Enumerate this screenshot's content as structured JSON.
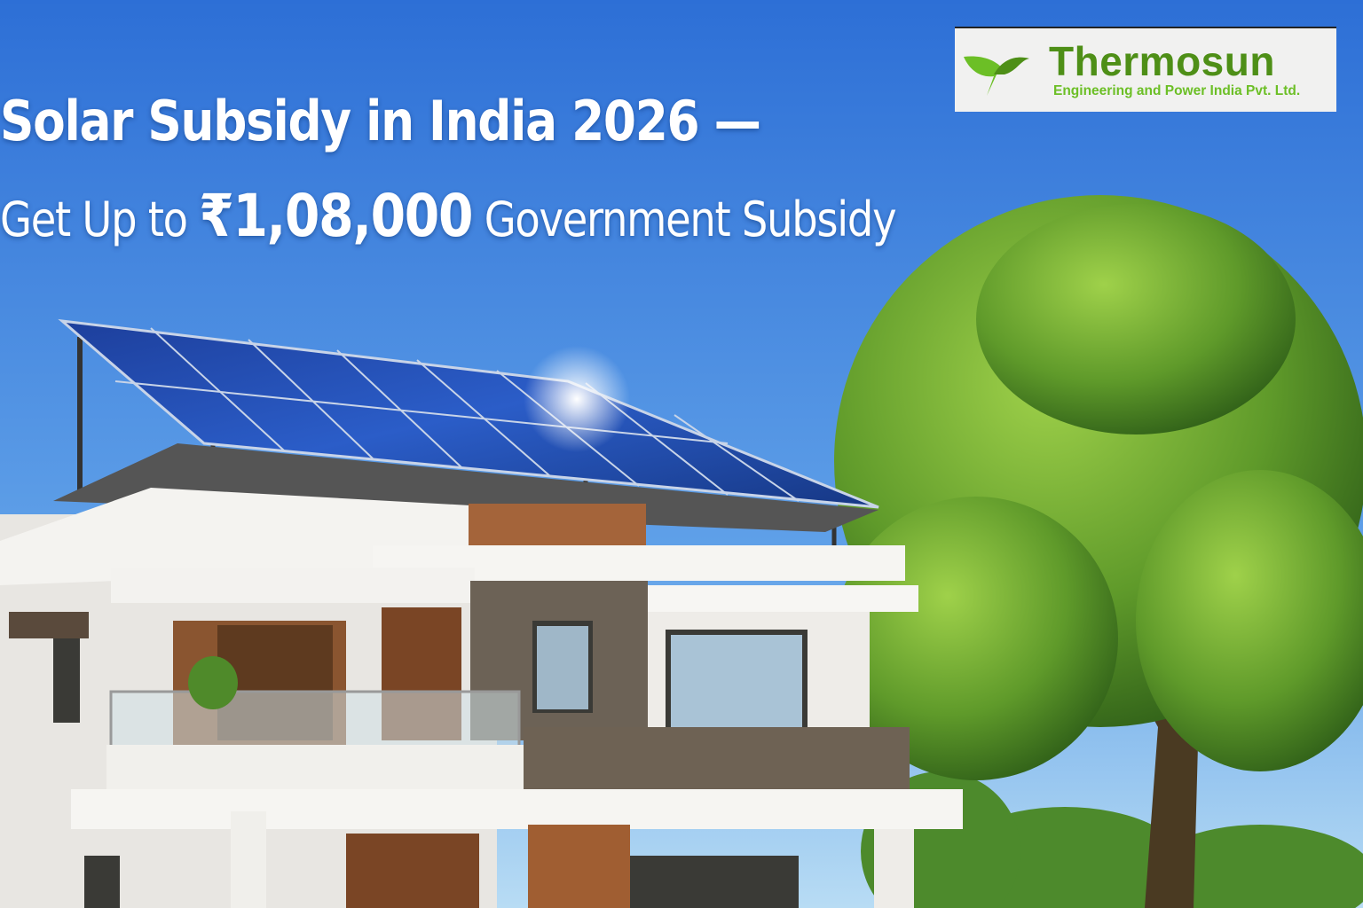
{
  "headline": {
    "line1": "Solar Subsidy in India 2026 —",
    "line2_prefix": "Get Up to ",
    "line2_amount": "₹1,08,000",
    "line2_suffix": " Government Subsidy"
  },
  "logo": {
    "brand": "Thermosun",
    "tagline": "Engineering and Power India Pvt. Ltd.",
    "icon": "green-leaf-bird-icon"
  },
  "colors": {
    "sky_top": "#2d6fd6",
    "sky_bottom": "#9ccbf0",
    "brand_green": "#4e8f17",
    "tagline_green": "#6cbf26",
    "panel_blue": "#1c3f9e",
    "tree_green": "#5f9a2a"
  }
}
